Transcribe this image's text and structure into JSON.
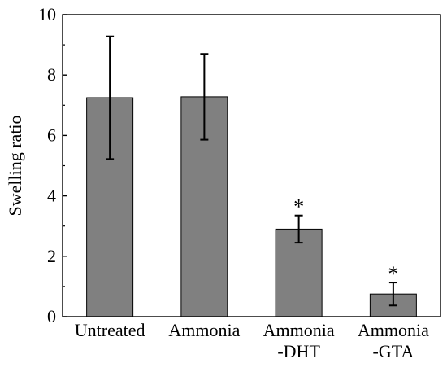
{
  "chart_data": {
    "type": "bar",
    "categories": [
      [
        "Untreated"
      ],
      [
        "Ammonia"
      ],
      [
        "Ammonia",
        "-DHT"
      ],
      [
        "Ammonia",
        "-GTA"
      ]
    ],
    "values": [
      7.25,
      7.28,
      2.9,
      0.75
    ],
    "errors": [
      2.03,
      1.42,
      0.45,
      0.38
    ],
    "significance": [
      "",
      "",
      "*",
      "*"
    ],
    "xlabel": "",
    "ylabel": "Swelling ratio",
    "ylim": [
      0,
      10
    ],
    "yticks": [
      0,
      2,
      4,
      6,
      8,
      10
    ],
    "grid": false,
    "legend": "none",
    "colors": {
      "bar_fill": "#808080",
      "bar_stroke": "#000000",
      "axis": "#000000",
      "error_bar": "#000000"
    }
  }
}
